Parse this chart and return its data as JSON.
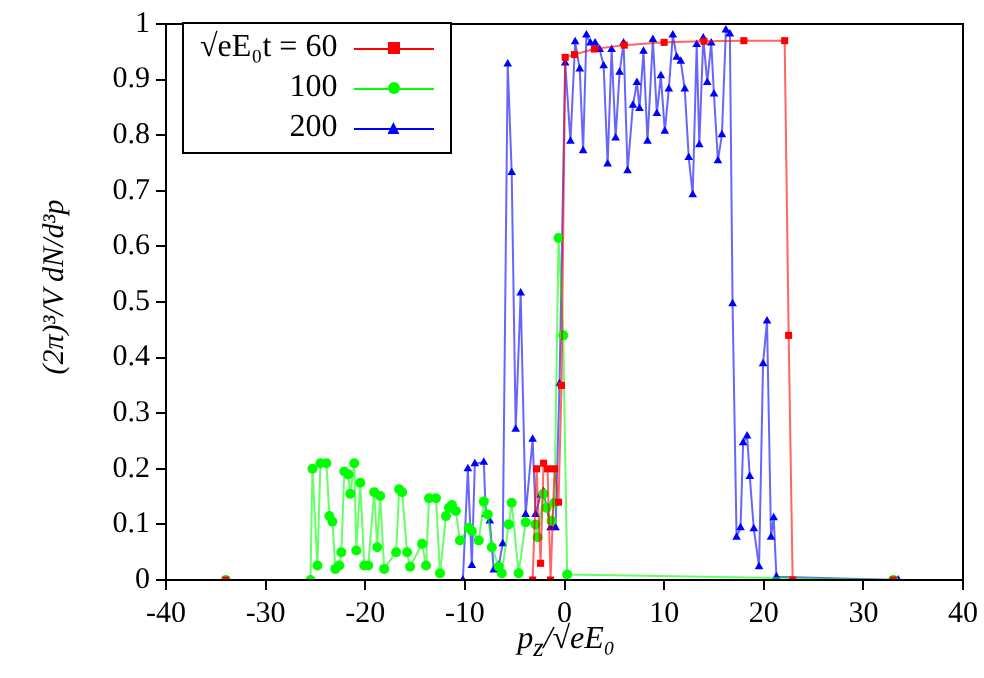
{
  "chart_data": {
    "type": "line",
    "xlabel": "p$_{z}$/√eE₀",
    "ylabel": "(2π)³/V dN/d³p",
    "xlim": [
      -40,
      40
    ],
    "xticks": [
      -40,
      -30,
      -20,
      -10,
      0,
      10,
      20,
      30,
      40
    ],
    "ylim": [
      0,
      1
    ],
    "yticks": [
      0,
      0.1,
      0.2,
      0.3,
      0.4,
      0.5,
      0.6,
      0.7,
      0.8,
      0.9,
      1
    ],
    "grid": false,
    "legend": "top left",
    "line_style": "solid",
    "series": [
      {
        "name": "√eE₀t = 60",
        "color": "#ff0000",
        "marker": "square",
        "x": [
          -34,
          -3.2,
          -2.8,
          -2.4,
          -2.1,
          -1.7,
          -1.4,
          -1.0,
          -0.6,
          -0.3,
          0.07,
          1,
          3,
          6,
          10,
          14,
          18,
          22.1,
          22.5,
          22.9,
          33
        ],
        "values": [
          0,
          0,
          0.2,
          0.03,
          0.21,
          0.2,
          0,
          0.2,
          0.14,
          0.35,
          0.94,
          0.945,
          0.955,
          0.962,
          0.967,
          0.969,
          0.97,
          0.97,
          0.44,
          0,
          0
        ]
      },
      {
        "name": "100",
        "color": "#00ff00",
        "marker": "circle",
        "x": [
          -34,
          -25.5,
          -25.3,
          -24.8,
          -24.5,
          -23.9,
          -23.6,
          -23.3,
          -23,
          -22.6,
          -22.4,
          -22.1,
          -21.7,
          -21.5,
          -21.1,
          -20.9,
          -20.5,
          -20.1,
          -19.7,
          -19.1,
          -18.8,
          -18.5,
          -18.1,
          -16.9,
          -16.6,
          -16.3,
          -15.8,
          -15.5,
          -14.3,
          -13.9,
          -13.6,
          -12.9,
          -12.5,
          -11.9,
          -11.6,
          -11.3,
          -10.9,
          -10.5,
          -9.6,
          -9.3,
          -8.6,
          -8.1,
          -7.7,
          -7.3,
          -6.6,
          -6.3,
          -5.6,
          -5.3,
          -4.6,
          -3.9,
          -2.9,
          -2.7,
          -2.1,
          -1.8,
          -1.3,
          -1.0,
          -0.6,
          -0.13,
          0.27,
          33
        ],
        "values": [
          0,
          0,
          0.2,
          0.026,
          0.21,
          0.21,
          0.115,
          0.105,
          0.02,
          0.026,
          0.05,
          0.195,
          0.19,
          0.155,
          0.21,
          0.053,
          0.175,
          0.026,
          0.026,
          0.158,
          0.059,
          0.151,
          0.02,
          0.05,
          0.163,
          0.158,
          0.05,
          0.024,
          0.065,
          0.026,
          0.147,
          0.147,
          0.012,
          0.115,
          0.13,
          0.135,
          0.124,
          0.071,
          0.094,
          0.088,
          0.071,
          0.141,
          0.118,
          0.059,
          0.024,
          0.012,
          0.1,
          0.139,
          0.012,
          0.104,
          0.1,
          0.077,
          0.155,
          0.13,
          0.106,
          0.139,
          0.615,
          0.44,
          0.01,
          0
        ]
      },
      {
        "name": "200",
        "color": "#0000ff",
        "marker": "triangle",
        "x": [
          -34,
          -10.2,
          -9.7,
          -9.3,
          -9.0,
          -8.1,
          -7.9,
          -7.5,
          -7.1,
          -6.6,
          -6.2,
          -5.7,
          -5.3,
          -4.9,
          -4.4,
          -3.9,
          -3.2,
          -2.9,
          -2.4,
          -2.1,
          -1.4,
          -0.9,
          -0.5,
          0.07,
          0.6,
          1.07,
          1.53,
          1.87,
          2.2,
          2.6,
          3.07,
          3.53,
          3.93,
          4.33,
          4.73,
          5.13,
          5.53,
          5.93,
          6.33,
          6.87,
          7.27,
          7.53,
          7.93,
          8.33,
          8.87,
          9.27,
          9.67,
          10.07,
          10.47,
          10.87,
          11.27,
          11.67,
          12.07,
          12.47,
          12.87,
          13.27,
          13.53,
          13.93,
          14.33,
          14.73,
          15.0,
          15.4,
          15.8,
          16.2,
          16.6,
          16.87,
          17.27,
          17.67,
          17.93,
          18.33,
          18.6,
          19.0,
          19.53,
          19.93,
          20.33,
          20.73,
          21.0,
          21.27,
          33.5
        ],
        "values": [
          0,
          0,
          0.2,
          0.026,
          0.209,
          0.212,
          0.118,
          0.106,
          0.018,
          0.026,
          0.065,
          0.928,
          0.733,
          0.271,
          0.516,
          0.118,
          0.253,
          0.118,
          0.153,
          0.159,
          0.094,
          0.094,
          0.353,
          0.93,
          0.789,
          0.968,
          0.919,
          0.772,
          0.98,
          0.966,
          0.966,
          0.954,
          0.925,
          0.748,
          0.954,
          0.795,
          0.913,
          0.966,
          0.736,
          0.854,
          0.895,
          0.848,
          0.951,
          0.789,
          0.972,
          0.839,
          0.907,
          0.807,
          0.883,
          0.98,
          0.94,
          0.933,
          0.883,
          0.76,
          0.693,
          0.963,
          0.783,
          0.975,
          0.895,
          0.966,
          0.874,
          0.754,
          0.801,
          0.989,
          0.982,
          0.497,
          0.077,
          0.094,
          0.247,
          0.259,
          0.186,
          0.092,
          0.024,
          0.389,
          0.466,
          0.077,
          0.112,
          0.006,
          0
        ]
      }
    ]
  }
}
